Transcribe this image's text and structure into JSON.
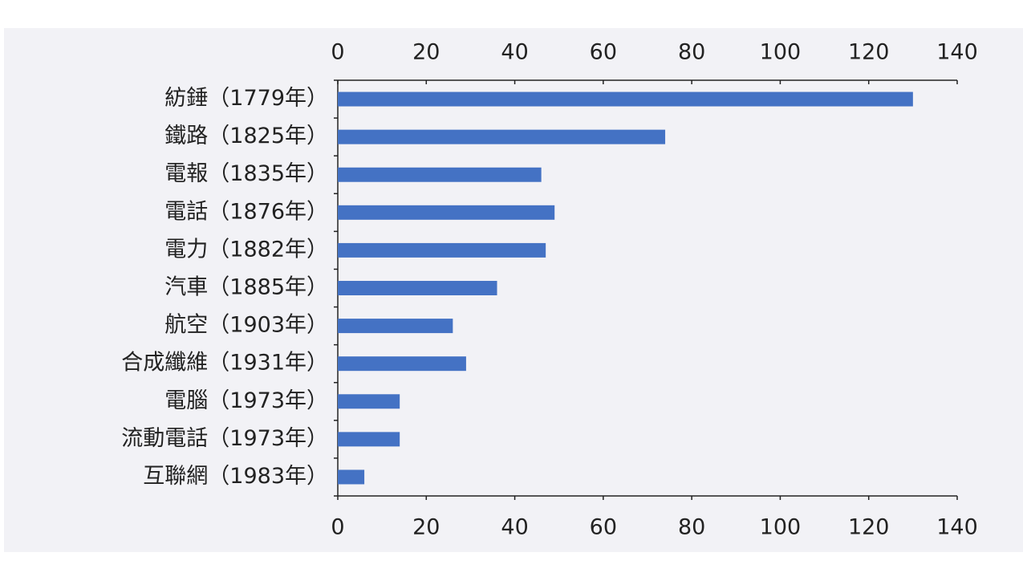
{
  "chart_data": {
    "type": "barh",
    "categories": [
      "紡錘（1779年）",
      "鐵路（1825年）",
      "電報（1835年）",
      "電話（1876年）",
      "電力（1882年）",
      "汽車（1885年）",
      "航空（1903年）",
      "合成纖維（1931年）",
      "電腦（1973年）",
      "流動電話（1973年）",
      "互聯網（1983年）"
    ],
    "values": [
      130,
      74,
      46,
      49,
      47,
      36,
      26,
      29,
      14,
      14,
      6
    ],
    "color": "#4472c4",
    "xlim": [
      0,
      140
    ],
    "xticks": [
      0,
      20,
      40,
      60,
      80,
      100,
      120,
      140
    ]
  }
}
